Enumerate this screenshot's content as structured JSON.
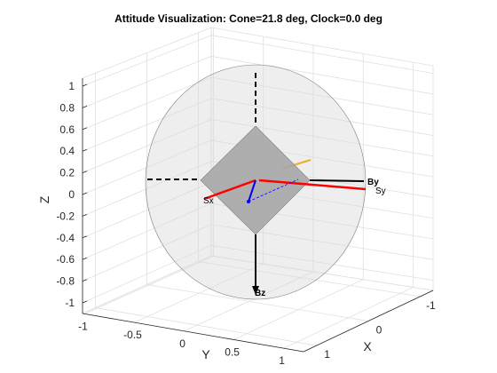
{
  "chart_data": {
    "type": "3d-attitude",
    "title": "Attitude Visualization: Cone=21.8 deg, Clock=0.0 deg",
    "xlabel": "X",
    "ylabel": "Y",
    "zlabel": "Z",
    "x_ticks": [
      "-1",
      "0",
      "1"
    ],
    "y_ticks": [
      "-1",
      "-0.5",
      "0",
      "0.5",
      "1"
    ],
    "z_ticks": [
      "-1",
      "-0.8",
      "-0.6",
      "-0.4",
      "-0.2",
      "0",
      "0.2",
      "0.4",
      "0.6",
      "0.8",
      "1"
    ],
    "xlim": [
      -1,
      1
    ],
    "ylim": [
      -1,
      1
    ],
    "zlim": [
      -1,
      1
    ],
    "grid": true,
    "cone_deg": 21.8,
    "clock_deg": 0.0,
    "vectors": [
      {
        "label": "By",
        "color": "#000000"
      },
      {
        "label": "Bz",
        "color": "#000000"
      },
      {
        "label": "Sx",
        "color": "#ff0000"
      },
      {
        "label": "Sy",
        "color": "#ff0000"
      }
    ],
    "colors": {
      "sphere": "#d9d9d9",
      "plate": "#a6a6a6",
      "body_axes": "#000000",
      "sail_axes": "#ff0000",
      "normal": "#0000ff",
      "sun": "#edb120"
    }
  }
}
